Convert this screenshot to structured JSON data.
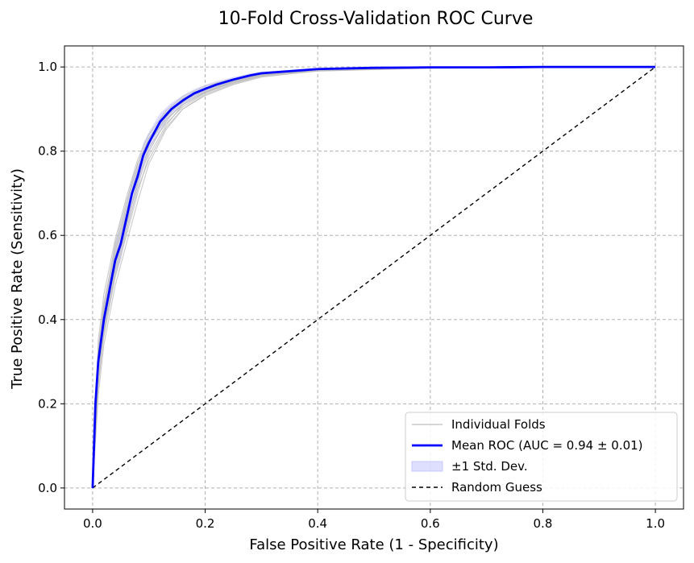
{
  "chart_data": {
    "type": "line",
    "title": "10-Fold Cross-Validation ROC Curve",
    "xlabel": "False Positive Rate (1 - Specificity)",
    "ylabel": "True Positive Rate (Sensitivity)",
    "xlim": [
      -0.05,
      1.05
    ],
    "ylim": [
      -0.05,
      1.05
    ],
    "xticks": [
      "0.0",
      "0.2",
      "0.4",
      "0.6",
      "0.8",
      "1.0"
    ],
    "yticks": [
      "0.0",
      "0.2",
      "0.4",
      "0.6",
      "0.8",
      "1.0"
    ],
    "grid": true,
    "legend_position": "lower right",
    "colors": {
      "mean": "#0000ff",
      "band": "#c8c8ff",
      "folds": "#bdbdbd",
      "random": "#000000"
    },
    "legend": [
      {
        "label": "Individual Folds",
        "style": "folds"
      },
      {
        "label": "Mean ROC (AUC = 0.94 ± 0.01)",
        "style": "mean"
      },
      {
        "label": "±1 Std. Dev.",
        "style": "band"
      },
      {
        "label": "Random Guess",
        "style": "random"
      }
    ],
    "mean_roc": {
      "name": "Mean ROC (AUC = 0.94 ± 0.01)",
      "x": [
        0.0,
        0.005,
        0.01,
        0.02,
        0.03,
        0.04,
        0.05,
        0.06,
        0.07,
        0.08,
        0.09,
        0.1,
        0.12,
        0.14,
        0.16,
        0.18,
        0.2,
        0.22,
        0.25,
        0.28,
        0.3,
        0.35,
        0.4,
        0.5,
        0.6,
        0.7,
        0.8,
        0.9,
        1.0
      ],
      "y": [
        0.0,
        0.2,
        0.3,
        0.4,
        0.47,
        0.54,
        0.58,
        0.64,
        0.7,
        0.74,
        0.79,
        0.82,
        0.87,
        0.9,
        0.92,
        0.937,
        0.948,
        0.958,
        0.97,
        0.98,
        0.985,
        0.99,
        0.995,
        0.998,
        0.999,
        0.999,
        1.0,
        1.0,
        1.0
      ]
    },
    "std_dev": {
      "name": "±1 Std. Dev.",
      "values": [
        0.0,
        0.03,
        0.04,
        0.04,
        0.04,
        0.04,
        0.04,
        0.035,
        0.035,
        0.03,
        0.03,
        0.025,
        0.02,
        0.015,
        0.012,
        0.01,
        0.01,
        0.008,
        0.006,
        0.005,
        0.004,
        0.003,
        0.002,
        0.001,
        0.001,
        0.0,
        0.0,
        0.0,
        0.0
      ]
    },
    "individual_folds": [
      {
        "x": [
          0.0,
          0.01,
          0.02,
          0.04,
          0.06,
          0.08,
          0.1,
          0.13,
          0.16,
          0.2,
          0.25,
          0.3,
          0.4,
          0.6,
          1.0
        ],
        "y": [
          0.0,
          0.33,
          0.44,
          0.57,
          0.67,
          0.77,
          0.83,
          0.89,
          0.925,
          0.95,
          0.97,
          0.985,
          0.995,
          0.999,
          1.0
        ]
      },
      {
        "x": [
          0.0,
          0.01,
          0.02,
          0.04,
          0.06,
          0.08,
          0.1,
          0.13,
          0.16,
          0.2,
          0.25,
          0.3,
          0.4,
          0.6,
          1.0
        ],
        "y": [
          0.0,
          0.25,
          0.36,
          0.5,
          0.6,
          0.7,
          0.79,
          0.86,
          0.91,
          0.94,
          0.965,
          0.98,
          0.993,
          0.998,
          1.0
        ]
      },
      {
        "x": [
          0.0,
          0.01,
          0.02,
          0.04,
          0.06,
          0.08,
          0.1,
          0.13,
          0.16,
          0.2,
          0.25,
          0.3,
          0.4,
          0.6,
          1.0
        ],
        "y": [
          0.0,
          0.3,
          0.42,
          0.56,
          0.66,
          0.75,
          0.82,
          0.88,
          0.92,
          0.945,
          0.968,
          0.982,
          0.994,
          0.998,
          1.0
        ]
      },
      {
        "x": [
          0.0,
          0.01,
          0.02,
          0.04,
          0.06,
          0.08,
          0.1,
          0.13,
          0.16,
          0.2,
          0.25,
          0.3,
          0.4,
          0.6,
          1.0
        ],
        "y": [
          0.0,
          0.22,
          0.34,
          0.48,
          0.58,
          0.68,
          0.77,
          0.85,
          0.9,
          0.935,
          0.96,
          0.978,
          0.99,
          0.997,
          1.0
        ]
      },
      {
        "x": [
          0.0,
          0.01,
          0.02,
          0.04,
          0.06,
          0.08,
          0.1,
          0.13,
          0.16,
          0.2,
          0.25,
          0.3,
          0.4,
          0.6,
          1.0
        ],
        "y": [
          0.0,
          0.35,
          0.46,
          0.59,
          0.69,
          0.78,
          0.84,
          0.895,
          0.93,
          0.955,
          0.972,
          0.986,
          0.996,
          0.999,
          1.0
        ]
      },
      {
        "x": [
          0.0,
          0.01,
          0.02,
          0.04,
          0.06,
          0.08,
          0.1,
          0.13,
          0.16,
          0.2,
          0.25,
          0.3,
          0.4,
          0.6,
          1.0
        ],
        "y": [
          0.0,
          0.28,
          0.39,
          0.53,
          0.63,
          0.72,
          0.8,
          0.87,
          0.915,
          0.942,
          0.966,
          0.981,
          0.994,
          0.998,
          1.0
        ]
      },
      {
        "x": [
          0.0,
          0.01,
          0.02,
          0.04,
          0.06,
          0.08,
          0.1,
          0.13,
          0.16,
          0.2,
          0.25,
          0.3,
          0.4,
          0.6,
          1.0
        ],
        "y": [
          0.0,
          0.31,
          0.41,
          0.55,
          0.65,
          0.76,
          0.82,
          0.875,
          0.91,
          0.94,
          0.962,
          0.979,
          0.993,
          0.998,
          1.0
        ]
      },
      {
        "x": [
          0.0,
          0.01,
          0.02,
          0.04,
          0.06,
          0.08,
          0.1,
          0.13,
          0.16,
          0.2,
          0.25,
          0.3,
          0.4,
          0.6,
          1.0
        ],
        "y": [
          0.0,
          0.24,
          0.37,
          0.51,
          0.61,
          0.71,
          0.78,
          0.855,
          0.9,
          0.932,
          0.958,
          0.976,
          0.991,
          0.997,
          1.0
        ]
      },
      {
        "x": [
          0.0,
          0.01,
          0.02,
          0.04,
          0.06,
          0.08,
          0.1,
          0.13,
          0.16,
          0.2,
          0.25,
          0.3,
          0.4,
          0.6,
          1.0
        ],
        "y": [
          0.0,
          0.32,
          0.43,
          0.58,
          0.68,
          0.77,
          0.83,
          0.885,
          0.922,
          0.948,
          0.97,
          0.984,
          0.995,
          0.999,
          1.0
        ]
      },
      {
        "x": [
          0.0,
          0.01,
          0.02,
          0.04,
          0.06,
          0.08,
          0.1,
          0.13,
          0.16,
          0.2,
          0.25,
          0.3,
          0.4,
          0.6,
          1.0
        ],
        "y": [
          0.0,
          0.27,
          0.38,
          0.52,
          0.62,
          0.73,
          0.81,
          0.865,
          0.905,
          0.938,
          0.963,
          0.98,
          0.992,
          0.998,
          1.0
        ]
      }
    ],
    "random_guess": {
      "name": "Random Guess",
      "x": [
        0.0,
        1.0
      ],
      "y": [
        0.0,
        1.0
      ]
    }
  }
}
